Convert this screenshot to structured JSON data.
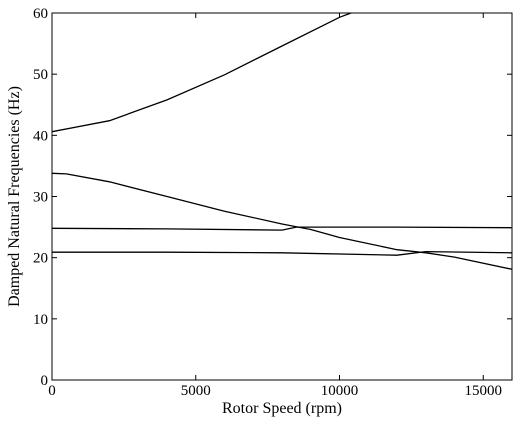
{
  "chart_data": {
    "type": "line",
    "title": "",
    "xlabel": "Rotor Speed (rpm)",
    "ylabel": "Damped Natural Frequencies (Hz)",
    "xlim": [
      0,
      16000
    ],
    "ylim": [
      0,
      60
    ],
    "xticks": [
      0,
      5000,
      10000,
      15000
    ],
    "yticks": [
      0,
      10,
      20,
      30,
      40,
      50,
      60
    ],
    "grid": false,
    "legend": "none",
    "line_color": "#000000",
    "series": [
      {
        "x": [
          0,
          2000,
          4000,
          6000,
          8000,
          10000,
          10400
        ],
        "y": [
          40.6,
          42.4,
          45.8,
          49.9,
          54.6,
          59.3,
          60
        ]
      },
      {
        "x": [
          0,
          500,
          2000,
          4000,
          6000,
          8000,
          9000,
          10000,
          12000,
          13000,
          14000,
          16000
        ],
        "y": [
          33.8,
          33.7,
          32.4,
          30.0,
          27.6,
          25.5,
          24.6,
          23.3,
          21.3,
          20.8,
          20.1,
          18.1
        ]
      },
      {
        "x": [
          0,
          4000,
          8000,
          8500,
          12000,
          16000
        ],
        "y": [
          24.8,
          24.7,
          24.5,
          25.0,
          25.0,
          24.9
        ]
      },
      {
        "x": [
          0,
          4000,
          8000,
          12000,
          13000,
          16000
        ],
        "y": [
          20.9,
          20.9,
          20.8,
          20.4,
          21.0,
          20.8
        ]
      }
    ]
  }
}
